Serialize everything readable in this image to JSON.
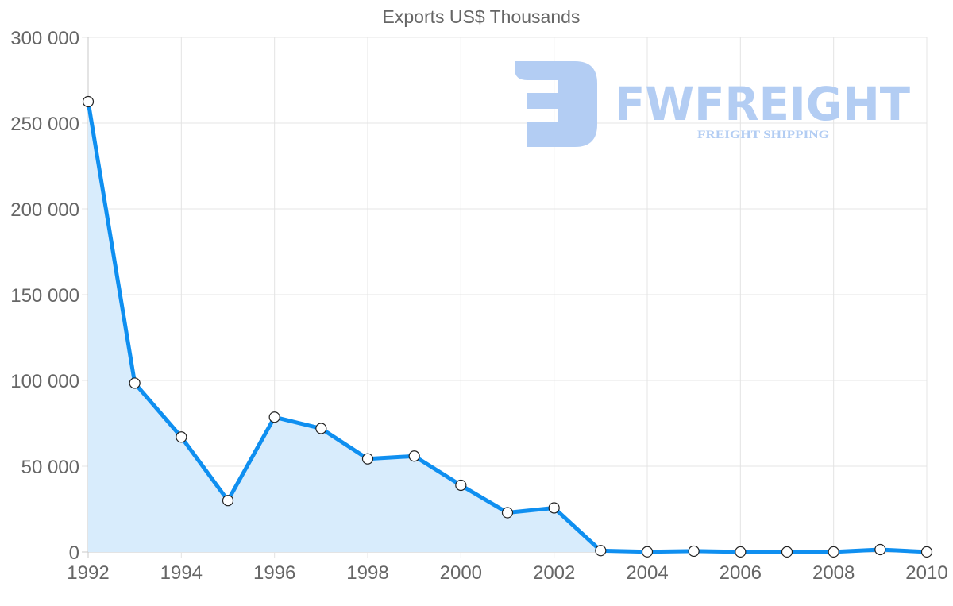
{
  "chart_data": {
    "type": "area",
    "title": "Exports US$ Thousands",
    "xlabel": "",
    "ylabel": "",
    "x": [
      1992,
      1993,
      1994,
      1995,
      1996,
      1997,
      1998,
      1999,
      2000,
      2001,
      2002,
      2003,
      2004,
      2005,
      2006,
      2007,
      2008,
      2009,
      2010
    ],
    "series": [
      {
        "name": "Exports US$ Thousands",
        "values": [
          262500,
          98400,
          67000,
          30000,
          78600,
          72000,
          54300,
          55900,
          38900,
          22900,
          25700,
          800,
          100,
          500,
          50,
          50,
          50,
          1400,
          50
        ],
        "color": "#0f8ff0",
        "fill": "#d8ecfc"
      }
    ],
    "ylim": [
      0,
      300000
    ],
    "xlim": [
      1992,
      2010
    ],
    "yticks": [
      "0",
      "50 000",
      "100 000",
      "150 000",
      "200 000",
      "250 000",
      "300 000"
    ],
    "xticks": [
      "1992",
      "1994",
      "1996",
      "1998",
      "2000",
      "2002",
      "2004",
      "2006",
      "2008",
      "2010"
    ],
    "grid": true,
    "legend": "none"
  },
  "watermark": {
    "brand": "FWFREIGHT",
    "tagline": "FREIGHT SHIPPING",
    "color": "#b3cdf3"
  }
}
